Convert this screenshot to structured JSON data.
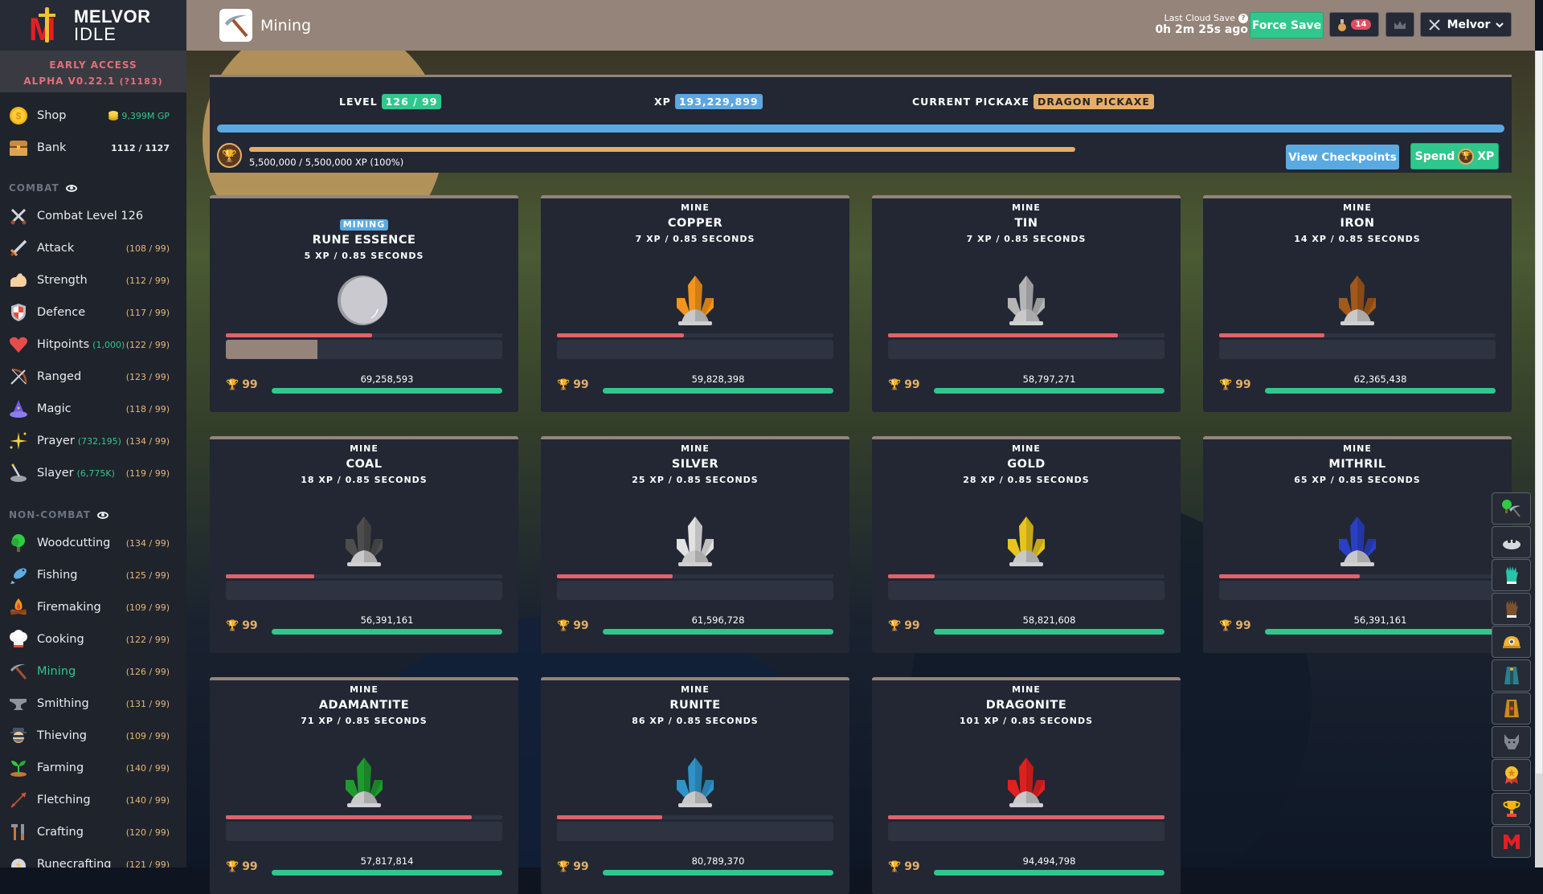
{
  "sidebar": {
    "brand": {
      "line1": "MELVOR",
      "line2": "IDLE"
    },
    "version": {
      "line1": "EARLY ACCESS",
      "line2": "ALPHA V0.22.1",
      "build": "(?1183)"
    },
    "shop": {
      "label": "Shop",
      "value": "9,399M GP"
    },
    "bank": {
      "label": "Bank",
      "value": "1112 / 1127"
    },
    "combat_title": "COMBAT",
    "noncombat_title": "NON-COMBAT",
    "combat_items": [
      {
        "label": "Combat Level 126",
        "extra": "",
        "level": "",
        "icon": "crossed-swords"
      },
      {
        "label": "Attack",
        "extra": "",
        "level": "(108 / 99)",
        "icon": "sword"
      },
      {
        "label": "Strength",
        "extra": "",
        "level": "(112 / 99)",
        "icon": "bicep"
      },
      {
        "label": "Defence",
        "extra": "",
        "level": "(117 / 99)",
        "icon": "shield"
      },
      {
        "label": "Hitpoints",
        "extra": "(1,000)",
        "level": "(122 / 99)",
        "icon": "heart"
      },
      {
        "label": "Ranged",
        "extra": "",
        "level": "(123 / 99)",
        "icon": "bow"
      },
      {
        "label": "Magic",
        "extra": "",
        "level": "(118 / 99)",
        "icon": "wizard-hat"
      },
      {
        "label": "Prayer",
        "extra": "(732,195)",
        "level": "(134 / 99)",
        "icon": "sparkle"
      },
      {
        "label": "Slayer",
        "extra": "(6,775K)",
        "level": "(119 / 99)",
        "icon": "slayer-sword"
      }
    ],
    "noncombat_items": [
      {
        "label": "Woodcutting",
        "level": "(134 / 99)",
        "icon": "tree"
      },
      {
        "label": "Fishing",
        "level": "(125 / 99)",
        "icon": "fish"
      },
      {
        "label": "Firemaking",
        "level": "(109 / 99)",
        "icon": "campfire"
      },
      {
        "label": "Cooking",
        "level": "(122 / 99)",
        "icon": "chef-hat"
      },
      {
        "label": "Mining",
        "level": "(126 / 99)",
        "icon": "pickaxe",
        "active": true
      },
      {
        "label": "Smithing",
        "level": "(131 / 99)",
        "icon": "anvil"
      },
      {
        "label": "Thieving",
        "level": "(109 / 99)",
        "icon": "thief"
      },
      {
        "label": "Farming",
        "level": "(140 / 99)",
        "icon": "sprout"
      },
      {
        "label": "Fletching",
        "level": "(140 / 99)",
        "icon": "arrows"
      },
      {
        "label": "Crafting",
        "level": "(120 / 99)",
        "icon": "hammer-chisel"
      },
      {
        "label": "Runecrafting",
        "level": "(121 / 99)",
        "icon": "rune"
      }
    ]
  },
  "header": {
    "title": "Mining",
    "cloud_label": "Last Cloud Save",
    "cloud_time": "0h 2m 25s ago",
    "force_save": "Force Save",
    "notification_count": "14",
    "user": "Melvor"
  },
  "stats": {
    "level_label": "LEVEL",
    "level_value": "126 / 99",
    "xp_label": "XP",
    "xp_value": "193,229,899",
    "pickaxe_label": "CURRENT PICKAXE",
    "pickaxe_value": "DRAGON PICKAXE",
    "mastery_pool": "5,500,000 / 5,500,000 XP (100%)",
    "view_checkpoints": "View Checkpoints",
    "spend_label": "Spend",
    "spend_suffix": "XP"
  },
  "rocks": [
    {
      "tag": "MINING",
      "name": "RUNE ESSENCE",
      "rate": "5 XP / 0.85 SECONDS",
      "hp_pct": 53,
      "action_pct": 33,
      "mastery_level": "99",
      "mastery_xp": "69,258,593",
      "color": "#c9c9cf",
      "type": "essence"
    },
    {
      "tag": "MINE",
      "name": "COPPER",
      "rate": "7 XP / 0.85 SECONDS",
      "hp_pct": 46,
      "action_pct": 0,
      "mastery_level": "99",
      "mastery_xp": "59,828,398",
      "color": "#f3941c"
    },
    {
      "tag": "MINE",
      "name": "TIN",
      "rate": "7 XP / 0.85 SECONDS",
      "hp_pct": 83,
      "action_pct": 0,
      "mastery_level": "99",
      "mastery_xp": "58,797,271",
      "color": "#b5b5b5"
    },
    {
      "tag": "MINE",
      "name": "IRON",
      "rate": "14 XP / 0.85 SECONDS",
      "hp_pct": 38,
      "action_pct": 0,
      "mastery_level": "99",
      "mastery_xp": "62,365,438",
      "color": "#a2591a"
    },
    {
      "tag": "MINE",
      "name": "COAL",
      "rate": "18 XP / 0.85 SECONDS",
      "hp_pct": 32,
      "action_pct": 0,
      "mastery_level": "99",
      "mastery_xp": "56,391,161",
      "color": "#4d4d4d"
    },
    {
      "tag": "MINE",
      "name": "SILVER",
      "rate": "25 XP / 0.85 SECONDS",
      "hp_pct": 42,
      "action_pct": 0,
      "mastery_level": "99",
      "mastery_xp": "61,596,728",
      "color": "#e2e2e2"
    },
    {
      "tag": "MINE",
      "name": "GOLD",
      "rate": "28 XP / 0.85 SECONDS",
      "hp_pct": 17,
      "action_pct": 0,
      "mastery_level": "99",
      "mastery_xp": "58,821,608",
      "color": "#e8c51c"
    },
    {
      "tag": "MINE",
      "name": "MITHRIL",
      "rate": "65 XP / 0.85 SECONDS",
      "hp_pct": 51,
      "action_pct": 0,
      "mastery_level": "99",
      "mastery_xp": "56,391,161",
      "color": "#2b3fc4"
    },
    {
      "tag": "MINE",
      "name": "ADAMANTITE",
      "rate": "71 XP / 0.85 SECONDS",
      "hp_pct": 89,
      "action_pct": 0,
      "mastery_level": "99",
      "mastery_xp": "57,817,814",
      "color": "#1f9a2e"
    },
    {
      "tag": "MINE",
      "name": "RUNITE",
      "rate": "86 XP / 0.85 SECONDS",
      "hp_pct": 38,
      "action_pct": 0,
      "mastery_level": "99",
      "mastery_xp": "80,789,370",
      "color": "#2f93c8"
    },
    {
      "tag": "MINE",
      "name": "DRAGONITE",
      "rate": "101 XP / 0.85 SECONDS",
      "hp_pct": 100,
      "action_pct": 0,
      "mastery_level": "99",
      "mastery_xp": "94,494,798",
      "color": "#e0201f"
    }
  ],
  "right_bar": [
    {
      "icon": "woodcutting-mining"
    },
    {
      "icon": "ore-rock"
    },
    {
      "icon": "teal-glove"
    },
    {
      "icon": "brown-glove"
    },
    {
      "icon": "mining-helmet"
    },
    {
      "icon": "blue-cape"
    },
    {
      "icon": "gold-cape"
    },
    {
      "icon": "wolf"
    },
    {
      "icon": "medal"
    },
    {
      "icon": "trophy"
    },
    {
      "icon": "melvor-logo"
    }
  ],
  "colors": {
    "accent_green": "#30c78d",
    "accent_blue": "#5ba9e1",
    "accent_orange": "#e5ae68",
    "hp_red": "#e0636a",
    "header_bg": "#958479",
    "panel_bg": "#222733"
  }
}
